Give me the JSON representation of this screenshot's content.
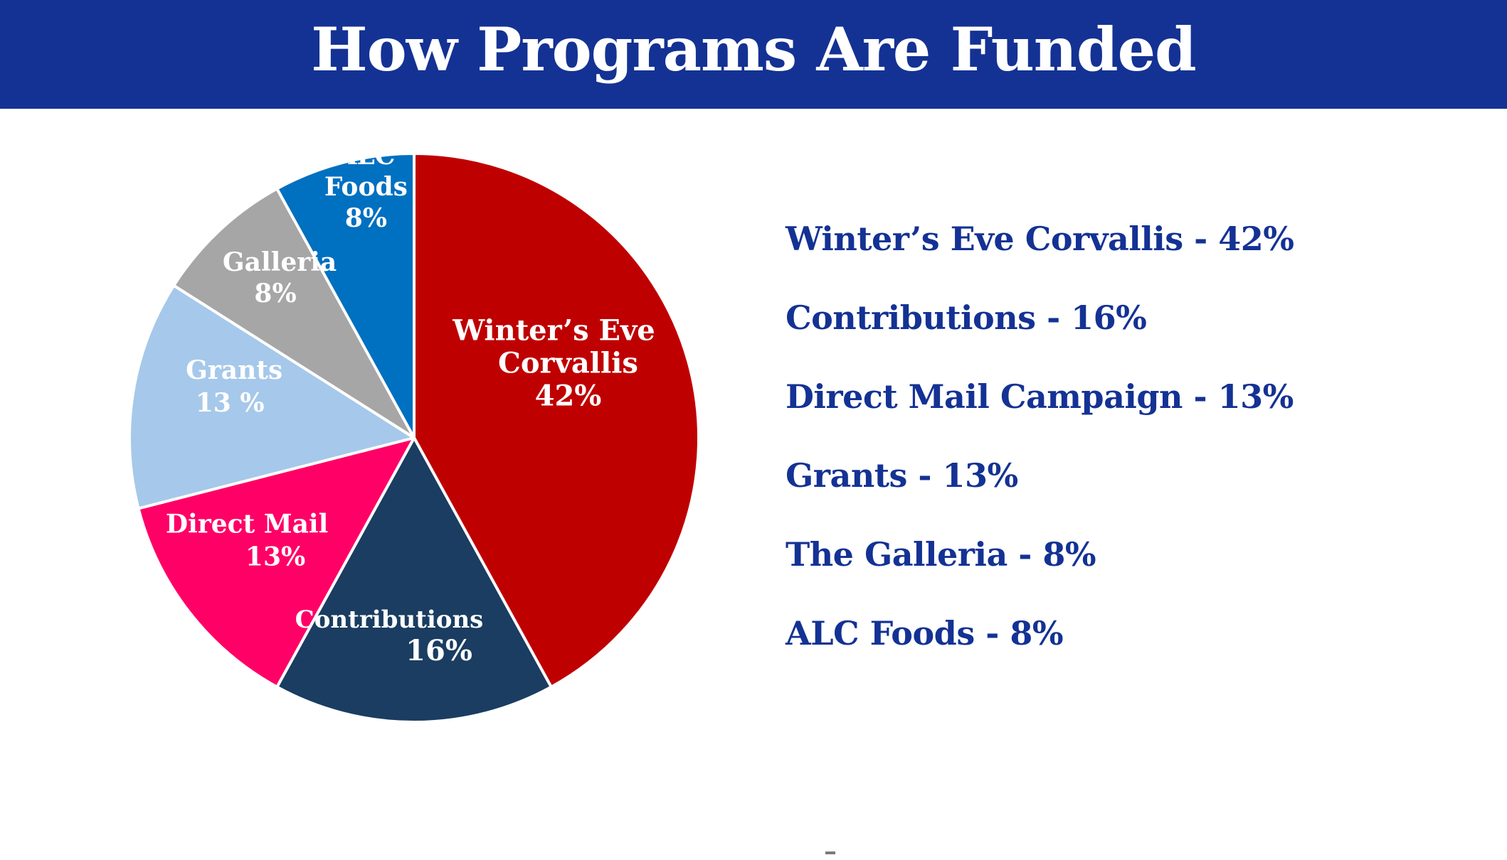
{
  "title": "How Programs Are Funded",
  "colors": {
    "title_bar": "#143294",
    "legend_text": "#143294",
    "slice_border": "#ffffff"
  },
  "chart_data": {
    "type": "pie",
    "slices": [
      {
        "category": "Winter's Eve Corvallis",
        "value": 42,
        "color": "#bf0000",
        "label_lines": [
          "Winter’s  Eve",
          "Corvallis",
          "42%"
        ]
      },
      {
        "category": "Contributions",
        "value": 16,
        "color": "#1a3d61",
        "label_lines": [
          "Contributions",
          "16%"
        ]
      },
      {
        "category": "Direct Mail",
        "value": 13,
        "color": "#ff0066",
        "label_lines": [
          "Direct Mail",
          "13%"
        ]
      },
      {
        "category": "Grants",
        "value": 13,
        "color": "#a6c8ea",
        "label_lines": [
          "Grants",
          "13 %"
        ]
      },
      {
        "category": "Galleria",
        "value": 8,
        "color": "#a6a6a6",
        "label_lines": [
          "Galleria",
          "8%"
        ]
      },
      {
        "category": "ALC Foods",
        "value": 8,
        "color": "#0070c0",
        "label_lines": [
          "ALC",
          "Foods",
          "8%"
        ]
      }
    ],
    "start_angle": "12 o'clock",
    "direction": "clockwise",
    "legend_placement": "right"
  },
  "legend": [
    "Winter’s Eve Corvallis - 42%",
    "Contributions - 16%",
    "Direct Mail Campaign - 13%",
    "Grants - 13%",
    "The Galleria - 8%",
    "ALC Foods - 8%"
  ]
}
